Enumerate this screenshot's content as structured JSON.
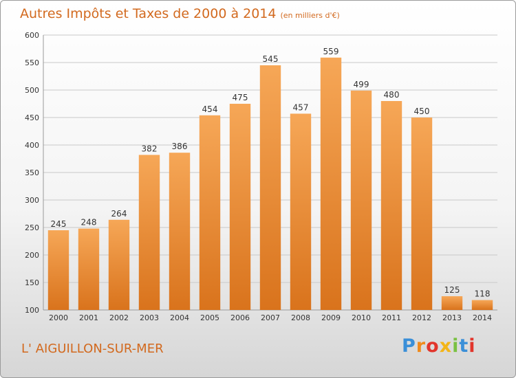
{
  "header": {
    "title": "Autres Impôts et Taxes de 2000 à 2014",
    "unit": "(en milliers d'€)"
  },
  "footer": {
    "commune": "L' AIGUILLON-SUR-MER",
    "logo_letters": [
      "P",
      "r",
      "o",
      "x",
      "i",
      "t",
      "i"
    ],
    "logo_colors": [
      "#3a8fd8",
      "#f08a1c",
      "#e2352c",
      "#f3b517",
      "#7ac143",
      "#3a8fd8",
      "#e2352c"
    ]
  },
  "colors": {
    "bar_top": "#f6a757",
    "bar_bottom": "#d9731c",
    "text_accent": "#d2691e",
    "grid": "#c8c8c8"
  },
  "chart_data": {
    "type": "bar",
    "categories": [
      "2000",
      "2001",
      "2002",
      "2003",
      "2004",
      "2005",
      "2006",
      "2007",
      "2008",
      "2009",
      "2010",
      "2011",
      "2012",
      "2013",
      "2014"
    ],
    "values": [
      245,
      248,
      264,
      382,
      386,
      454,
      475,
      545,
      457,
      559,
      499,
      480,
      450,
      125,
      118
    ],
    "title": "Autres Impôts et Taxes de 2000 à 2014",
    "xlabel": "",
    "ylabel": "",
    "ylim": [
      100,
      600
    ],
    "yticks": [
      100,
      150,
      200,
      250,
      300,
      350,
      400,
      450,
      500,
      550,
      600
    ],
    "grid": true
  }
}
